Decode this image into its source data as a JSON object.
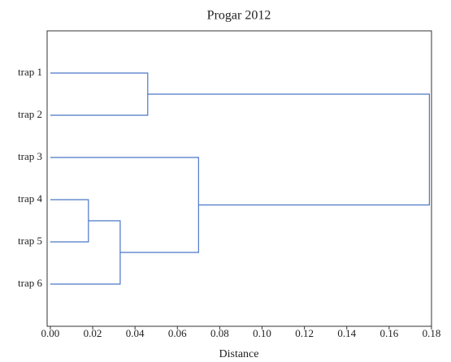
{
  "chart_data": {
    "type": "dendrogram",
    "title": "Progar 2012",
    "xlabel": "Distance",
    "leaves": [
      "trap 1",
      "trap 2",
      "trap 3",
      "trap 4",
      "trap 5",
      "trap 6"
    ],
    "merges": [
      {
        "children": [
          3,
          4
        ],
        "distance": 0.018
      },
      {
        "children": [
          5,
          6
        ],
        "distance": 0.033
      },
      {
        "children": [
          2,
          7
        ],
        "distance": 0.07
      },
      {
        "children": [
          0,
          1
        ],
        "distance": 0.046
      },
      {
        "children": [
          9,
          8
        ],
        "distance": 0.179
      }
    ],
    "color": "#4a78c8",
    "xlim": [
      -0.0015,
      0.18
    ],
    "xticks": [
      {
        "value": 0,
        "label": "0.00"
      },
      {
        "value": 0.02,
        "label": "0.02"
      },
      {
        "value": 0.04,
        "label": "0.04"
      },
      {
        "value": 0.06,
        "label": "0.06"
      },
      {
        "value": 0.08,
        "label": "0.08"
      },
      {
        "value": 0.1,
        "label": "0.10"
      },
      {
        "value": 0.12,
        "label": "0.12"
      },
      {
        "value": 0.14,
        "label": "0.14"
      },
      {
        "value": 0.16,
        "label": "0.16"
      },
      {
        "value": 0.18,
        "label": "0.18"
      }
    ]
  }
}
